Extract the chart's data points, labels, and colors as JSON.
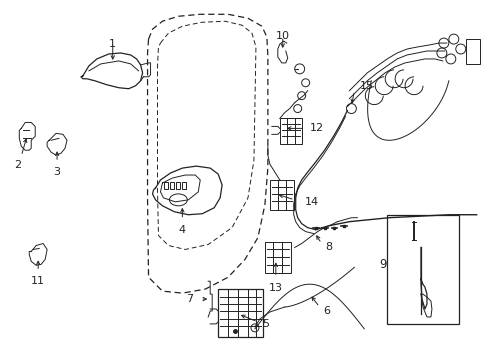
{
  "background_color": "#ffffff",
  "line_color": "#222222",
  "figsize": [
    4.89,
    3.6
  ],
  "dpi": 100,
  "door_outer": {
    "x": [
      148,
      152,
      162,
      178,
      200,
      228,
      248,
      260,
      265,
      267,
      267,
      264,
      258,
      248,
      232,
      210,
      188,
      168,
      152,
      148,
      147,
      147,
      148
    ],
    "y": [
      38,
      30,
      22,
      18,
      16,
      15,
      18,
      24,
      32,
      45,
      160,
      200,
      235,
      258,
      275,
      288,
      294,
      294,
      288,
      260,
      160,
      55,
      38
    ]
  },
  "door_inner": {
    "x": [
      162,
      170,
      185,
      205,
      228,
      245,
      255,
      258,
      256,
      248,
      232,
      210,
      188,
      170,
      160,
      158,
      158,
      160,
      162
    ],
    "y": [
      42,
      34,
      28,
      24,
      22,
      26,
      34,
      50,
      150,
      195,
      228,
      245,
      250,
      248,
      240,
      200,
      80,
      48,
      42
    ]
  }
}
